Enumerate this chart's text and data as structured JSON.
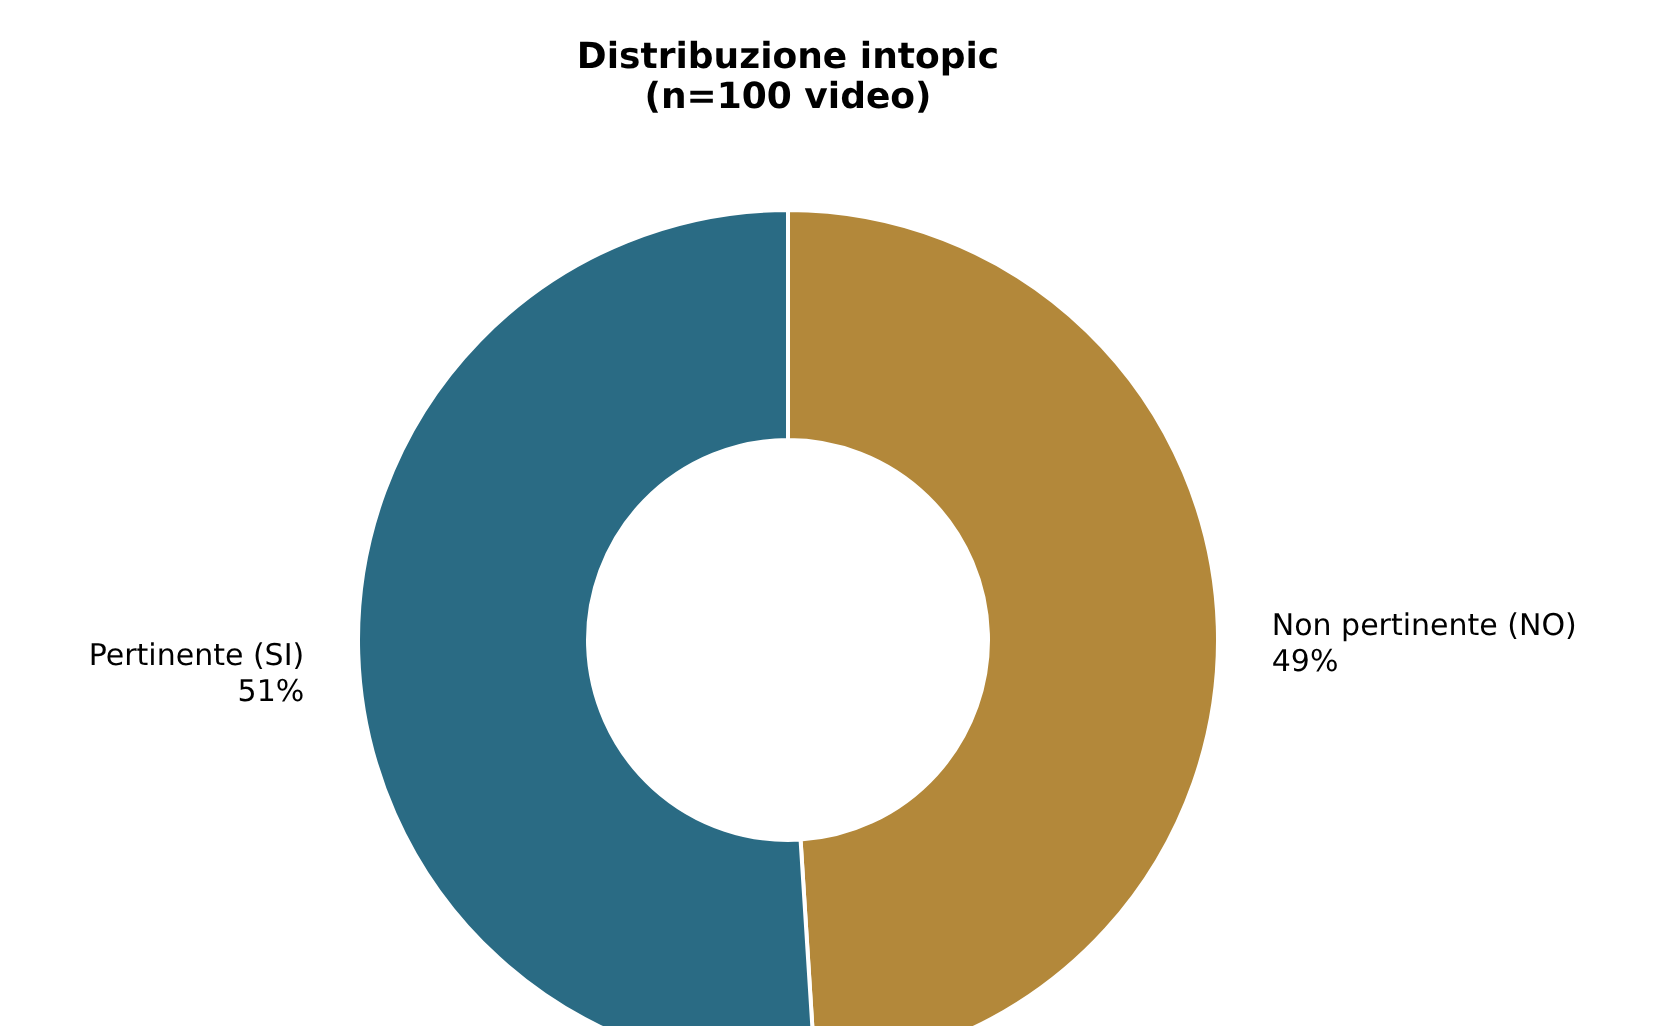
{
  "chart_data": {
    "type": "donut",
    "title": "Distribuzione intopic\n(n=100 video)",
    "categories": [
      "Non pertinente (NO)",
      "Pertinente (SI)"
    ],
    "values": [
      49,
      51
    ],
    "colors": [
      "#b3883a",
      "#2a6b84"
    ],
    "value_labels": [
      "49%",
      "51%"
    ],
    "legend": false
  }
}
